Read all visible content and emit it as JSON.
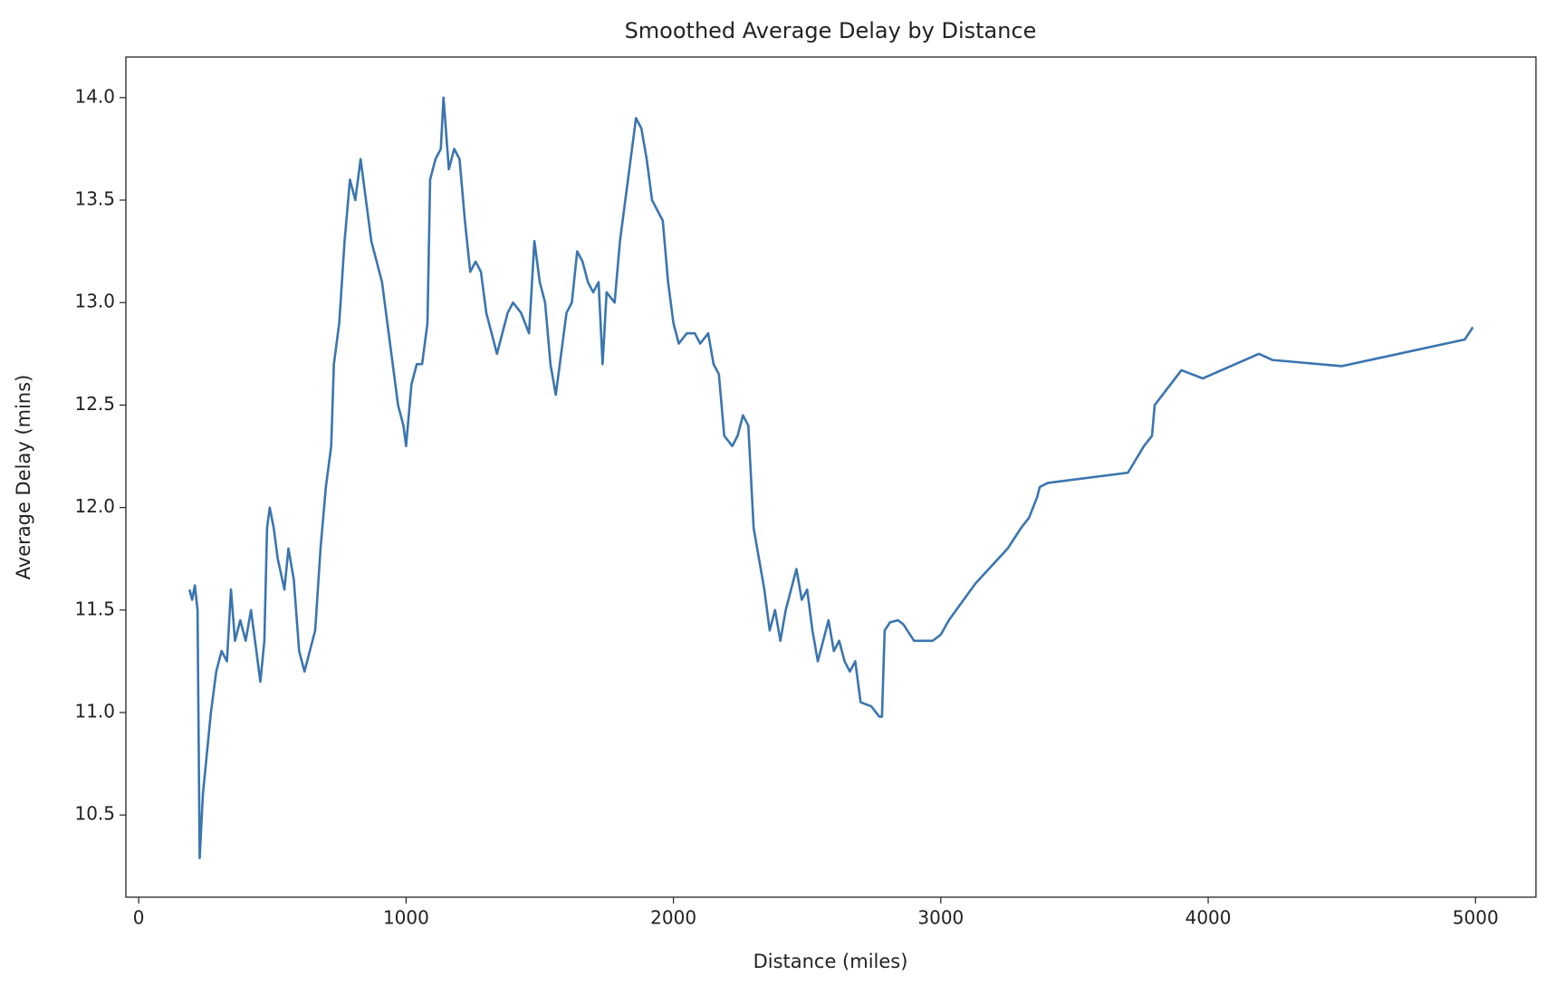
{
  "chart_data": {
    "type": "line",
    "title": "Smoothed Average Delay by Distance",
    "x_label": "Distance (miles)",
    "y_label": "Average Delay (mins)",
    "xlim": [
      -48,
      5226
    ],
    "ylim": [
      10.099,
      14.198
    ],
    "xticks": [
      0,
      1000,
      2000,
      3000,
      4000,
      5000
    ],
    "yticks": [
      {
        "value": 10.5,
        "label": "10.5"
      },
      {
        "value": 11,
        "label": "11.0"
      },
      {
        "value": 11.5,
        "label": "11.5"
      },
      {
        "value": 12,
        "label": "12.0"
      },
      {
        "value": 12.5,
        "label": "12.5"
      },
      {
        "value": 13,
        "label": "13.0"
      },
      {
        "value": 13.5,
        "label": "13.5"
      },
      {
        "value": 14,
        "label": "14.0"
      }
    ],
    "grid": false,
    "series": [
      {
        "name": "Average Delay",
        "color": "#3b75af",
        "x": [
          190,
          200,
          210,
          220,
          228,
          240,
          255,
          270,
          290,
          310,
          330,
          345,
          360,
          380,
          400,
          420,
          440,
          455,
          470,
          480,
          490,
          505,
          520,
          545,
          560,
          580,
          600,
          620,
          640,
          660,
          680,
          700,
          720,
          730,
          750,
          770,
          790,
          810,
          830,
          850,
          870,
          890,
          910,
          930,
          950,
          970,
          990,
          1000,
          1020,
          1040,
          1060,
          1080,
          1090,
          1110,
          1130,
          1140,
          1160,
          1180,
          1200,
          1220,
          1240,
          1260,
          1280,
          1300,
          1320,
          1340,
          1360,
          1380,
          1400,
          1430,
          1460,
          1480,
          1500,
          1520,
          1540,
          1560,
          1580,
          1600,
          1620,
          1640,
          1660,
          1680,
          1700,
          1720,
          1735,
          1750,
          1780,
          1800,
          1820,
          1840,
          1860,
          1880,
          1900,
          1920,
          1940,
          1960,
          1980,
          2000,
          2020,
          2050,
          2080,
          2100,
          2130,
          2150,
          2170,
          2190,
          2220,
          2240,
          2260,
          2280,
          2300,
          2320,
          2340,
          2360,
          2380,
          2400,
          2420,
          2440,
          2460,
          2480,
          2500,
          2520,
          2540,
          2560,
          2580,
          2600,
          2620,
          2640,
          2660,
          2680,
          2700,
          2740,
          2770,
          2780,
          2790,
          2810,
          2840,
          2860,
          2900,
          2970,
          3000,
          3030,
          3130,
          3250,
          3300,
          3330,
          3360,
          3370,
          3400,
          3700,
          3760,
          3790,
          3800,
          3900,
          3980,
          4190,
          4240,
          4500,
          4960,
          4990
        ],
        "values": [
          11.6,
          11.55,
          11.62,
          11.5,
          10.29,
          10.6,
          10.8,
          11.0,
          11.2,
          11.3,
          11.25,
          11.6,
          11.35,
          11.45,
          11.35,
          11.5,
          11.3,
          11.15,
          11.35,
          11.9,
          12.0,
          11.9,
          11.75,
          11.6,
          11.8,
          11.65,
          11.3,
          11.2,
          11.3,
          11.4,
          11.8,
          12.1,
          12.3,
          12.7,
          12.9,
          13.3,
          13.6,
          13.5,
          13.7,
          13.5,
          13.3,
          13.2,
          13.1,
          12.9,
          12.7,
          12.5,
          12.4,
          12.3,
          12.6,
          12.7,
          12.7,
          12.9,
          13.6,
          13.7,
          13.75,
          14.0,
          13.65,
          13.75,
          13.7,
          13.4,
          13.15,
          13.2,
          13.15,
          12.95,
          12.85,
          12.75,
          12.85,
          12.95,
          13.0,
          12.95,
          12.85,
          13.3,
          13.1,
          13.0,
          12.7,
          12.55,
          12.75,
          12.95,
          13.0,
          13.25,
          13.2,
          13.1,
          13.05,
          13.1,
          12.7,
          13.05,
          13.0,
          13.3,
          13.5,
          13.7,
          13.9,
          13.85,
          13.7,
          13.5,
          13.45,
          13.4,
          13.1,
          12.9,
          12.8,
          12.85,
          12.85,
          12.8,
          12.85,
          12.7,
          12.65,
          12.35,
          12.3,
          12.35,
          12.45,
          12.4,
          11.9,
          11.75,
          11.6,
          11.4,
          11.5,
          11.35,
          11.5,
          11.6,
          11.7,
          11.55,
          11.6,
          11.4,
          11.25,
          11.35,
          11.45,
          11.3,
          11.35,
          11.25,
          11.2,
          11.25,
          11.05,
          11.03,
          10.98,
          10.98,
          11.4,
          11.44,
          11.45,
          11.43,
          11.35,
          11.35,
          11.38,
          11.45,
          11.63,
          11.8,
          11.9,
          11.95,
          12.05,
          12.1,
          12.12,
          12.17,
          12.3,
          12.35,
          12.5,
          12.67,
          12.63,
          12.75,
          12.72,
          12.69,
          12.82,
          12.88
        ]
      }
    ]
  }
}
